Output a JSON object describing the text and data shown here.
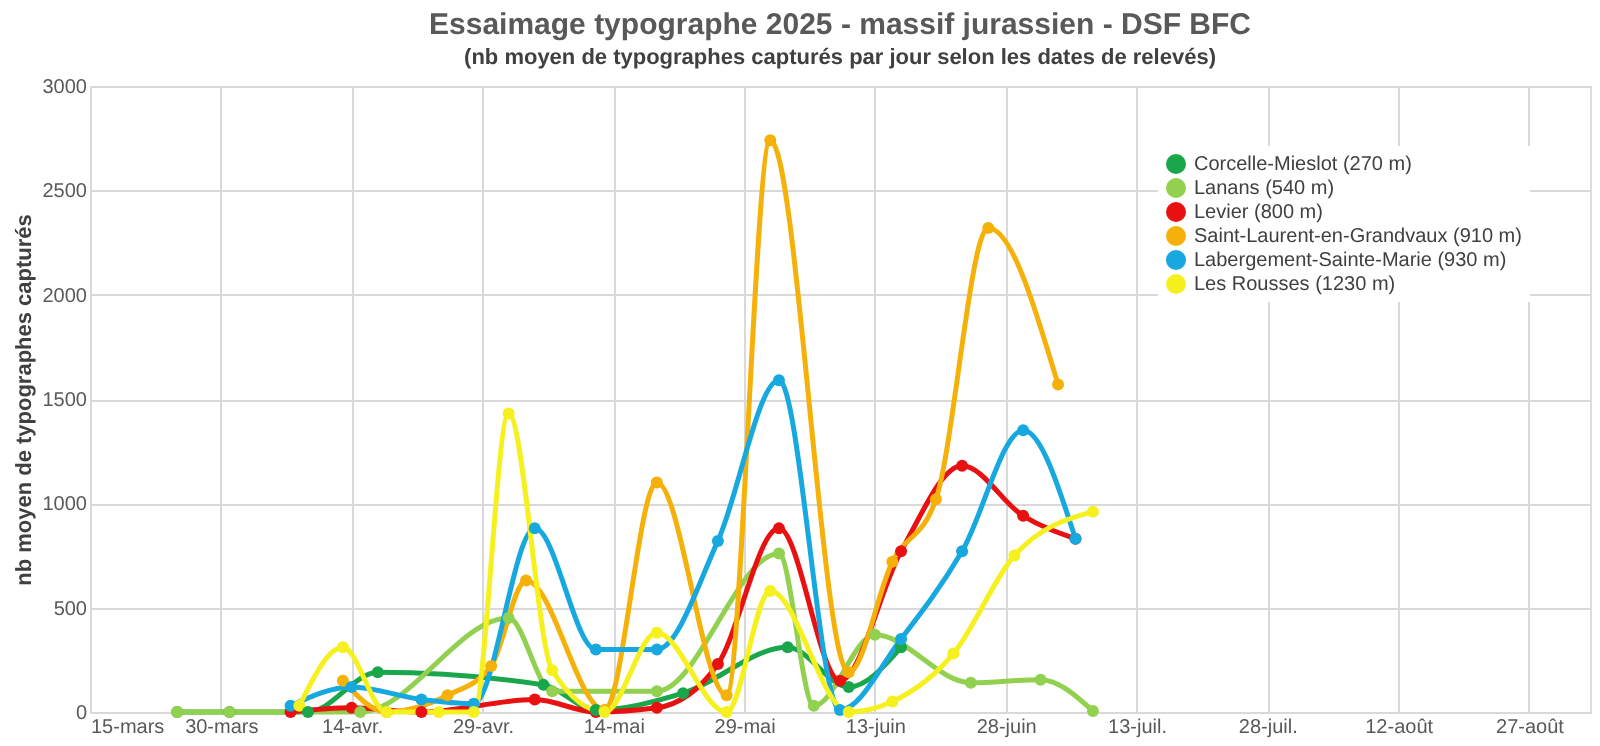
{
  "chart_data": {
    "type": "line",
    "title": "Essaimage typographe 2025 - massif jurassien - DSF BFC",
    "subtitle": "(nb moyen de typographes capturés par jour selon les dates de relevés)",
    "ylabel": "nb moyen de typographes capturés",
    "xlim": [
      "2025-03-15",
      "2025-09-03"
    ],
    "xticks": [
      {
        "value": "2025-03-15",
        "label": "15-mars"
      },
      {
        "value": "2025-03-30",
        "label": "30-mars"
      },
      {
        "value": "2025-04-14",
        "label": "14-avr."
      },
      {
        "value": "2025-04-29",
        "label": "29-avr."
      },
      {
        "value": "2025-05-14",
        "label": "14-mai"
      },
      {
        "value": "2025-05-29",
        "label": "29-mai"
      },
      {
        "value": "2025-06-13",
        "label": "13-juin"
      },
      {
        "value": "2025-06-28",
        "label": "28-juin"
      },
      {
        "value": "2025-07-13",
        "label": "13-juil."
      },
      {
        "value": "2025-07-28",
        "label": "28-juil."
      },
      {
        "value": "2025-08-12",
        "label": "12-août"
      },
      {
        "value": "2025-08-27",
        "label": "27-août"
      }
    ],
    "ylim": [
      0,
      3000
    ],
    "yticks": [
      0,
      500,
      1000,
      1500,
      2000,
      2500,
      3000
    ],
    "grid": true,
    "legend": "top right",
    "marker": "circle",
    "line_style": "solid",
    "series": [
      {
        "name": "Corcelle-Mieslot (270 m)",
        "color": "#1aa64a",
        "x": [
          "2025-03-25",
          "2025-03-31",
          "2025-04-09",
          "2025-04-17",
          "2025-05-06",
          "2025-05-12",
          "2025-05-22",
          "2025-06-03",
          "2025-06-10",
          "2025-06-16"
        ],
        "values": [
          0,
          0,
          0,
          190,
          130,
          10,
          90,
          310,
          120,
          310
        ]
      },
      {
        "name": "Lanans (540 m)",
        "color": "#92d050",
        "x": [
          "2025-03-25",
          "2025-03-31",
          "2025-04-15",
          "2025-05-02",
          "2025-05-07",
          "2025-05-19",
          "2025-06-02",
          "2025-06-06",
          "2025-06-13",
          "2025-06-24",
          "2025-07-02",
          "2025-07-08"
        ],
        "values": [
          0,
          0,
          0,
          450,
          100,
          100,
          760,
          30,
          370,
          140,
          155,
          5
        ]
      },
      {
        "name": "Levier (800 m)",
        "color": "#e81010",
        "x": [
          "2025-04-07",
          "2025-04-14",
          "2025-04-22",
          "2025-05-05",
          "2025-05-12",
          "2025-05-19",
          "2025-05-26",
          "2025-06-02",
          "2025-06-09",
          "2025-06-16",
          "2025-06-23",
          "2025-06-30",
          "2025-07-06"
        ],
        "values": [
          0,
          20,
          0,
          60,
          0,
          20,
          230,
          880,
          150,
          770,
          1180,
          940,
          830
        ]
      },
      {
        "name": "Saint-Laurent-en-Grandvaux (910 m)",
        "color": "#f5b10a",
        "x": [
          "2025-04-13",
          "2025-04-18",
          "2025-04-25",
          "2025-04-30",
          "2025-05-04",
          "2025-05-13",
          "2025-05-19",
          "2025-05-27",
          "2025-06-01",
          "2025-06-10",
          "2025-06-15",
          "2025-06-20",
          "2025-06-26",
          "2025-07-04"
        ],
        "values": [
          150,
          0,
          80,
          220,
          630,
          10,
          1100,
          80,
          2740,
          190,
          720,
          1020,
          2320,
          1570
        ]
      },
      {
        "name": "Labergement-Sainte-Marie  (930 m)",
        "color": "#17a8e0",
        "x": [
          "2025-04-07",
          "2025-04-14",
          "2025-04-22",
          "2025-04-28",
          "2025-05-05",
          "2025-05-12",
          "2025-05-19",
          "2025-05-26",
          "2025-06-02",
          "2025-06-09",
          "2025-06-16",
          "2025-06-23",
          "2025-06-30",
          "2025-07-06"
        ],
        "values": [
          30,
          120,
          60,
          40,
          880,
          300,
          300,
          820,
          1590,
          10,
          350,
          770,
          1350,
          830
        ]
      },
      {
        "name": "Les Rousses (1230 m)",
        "color": "#f5f01e",
        "x": [
          "2025-04-08",
          "2025-04-13",
          "2025-04-18",
          "2025-04-24",
          "2025-04-28",
          "2025-05-02",
          "2025-05-07",
          "2025-05-13",
          "2025-05-19",
          "2025-05-27",
          "2025-06-01",
          "2025-06-10",
          "2025-06-15",
          "2025-06-22",
          "2025-06-29",
          "2025-07-08"
        ],
        "values": [
          30,
          310,
          0,
          0,
          0,
          1430,
          200,
          0,
          380,
          0,
          580,
          0,
          50,
          280,
          750,
          960
        ]
      }
    ]
  }
}
